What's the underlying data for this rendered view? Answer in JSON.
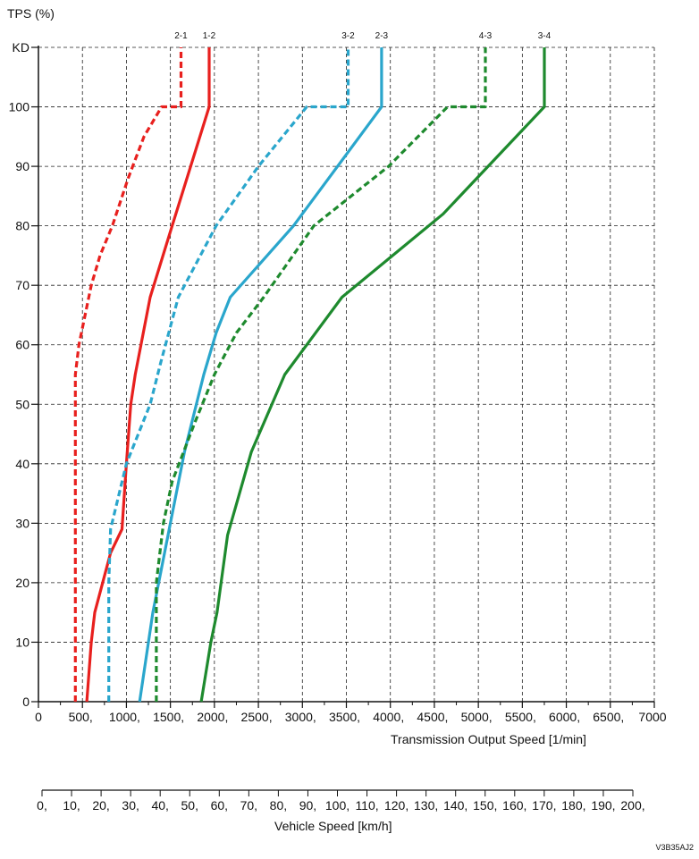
{
  "chart_data": {
    "type": "line",
    "y_axis": {
      "label": "TPS (%)",
      "range": [
        0,
        110
      ],
      "ticks": [
        0,
        10,
        20,
        30,
        40,
        50,
        60,
        70,
        80,
        90,
        100
      ],
      "tick_labels": [
        "0",
        "10",
        "20",
        "30",
        "40",
        "50",
        "60",
        "70",
        "80",
        "90",
        "100"
      ],
      "top_tick_value": 110,
      "top_tick_label": "KD"
    },
    "x_axis": {
      "label": "Transmission Output Speed [1/min]",
      "range": [
        0,
        7000
      ],
      "ticks": [
        0,
        500,
        1000,
        1500,
        2000,
        2500,
        3000,
        3500,
        4000,
        4500,
        5000,
        5500,
        6000,
        6500,
        7000
      ],
      "tick_labels": [
        "0",
        "500,",
        "1000,",
        "1500,",
        "2000,",
        "2500,",
        "3000,",
        "3500,",
        "4000,",
        "4500,",
        "5000,",
        "5500,",
        "6000,",
        "6500,",
        "7000"
      ]
    },
    "secondary_x_axis": {
      "label": "Vehicle Speed [km/h]",
      "range": [
        0,
        200
      ],
      "ticks": [
        0,
        10,
        20,
        30,
        40,
        50,
        60,
        70,
        80,
        90,
        100,
        110,
        120,
        130,
        140,
        150,
        160,
        170,
        180,
        190,
        200
      ],
      "tick_labels": [
        "0,",
        "10,",
        "20,",
        "30,",
        "40,",
        "50,",
        "60,",
        "70,",
        "80,",
        "90,",
        "100,",
        "110,",
        "120,",
        "130,",
        "140,",
        "150,",
        "160,",
        "170,",
        "180,",
        "190,",
        "200,"
      ]
    },
    "grid": true,
    "series": [
      {
        "name": "2-1",
        "color": "#e8201e",
        "style": "dashed",
        "points": [
          [
            420,
            0
          ],
          [
            420,
            55
          ],
          [
            460,
            60
          ],
          [
            530,
            65
          ],
          [
            600,
            70
          ],
          [
            700,
            75
          ],
          [
            840,
            80
          ],
          [
            1020,
            88
          ],
          [
            1200,
            95
          ],
          [
            1400,
            100
          ],
          [
            1620,
            100
          ],
          [
            1620,
            110
          ]
        ]
      },
      {
        "name": "1-2",
        "color": "#e8201e",
        "style": "solid",
        "points": [
          [
            550,
            0
          ],
          [
            600,
            10
          ],
          [
            640,
            15
          ],
          [
            820,
            25
          ],
          [
            950,
            29
          ],
          [
            1000,
            40
          ],
          [
            1050,
            50
          ],
          [
            1100,
            55
          ],
          [
            1270,
            68
          ],
          [
            1520,
            80
          ],
          [
            1940,
            100
          ],
          [
            1940,
            110
          ]
        ]
      },
      {
        "name": "3-2",
        "color": "#2aa6cc",
        "style": "dashed",
        "points": [
          [
            800,
            0
          ],
          [
            800,
            20
          ],
          [
            820,
            29
          ],
          [
            1000,
            40
          ],
          [
            1270,
            50
          ],
          [
            1390,
            57
          ],
          [
            1590,
            68
          ],
          [
            2020,
            80
          ],
          [
            2500,
            90
          ],
          [
            3050,
            100
          ],
          [
            3520,
            100
          ],
          [
            3520,
            110
          ]
        ]
      },
      {
        "name": "2-3",
        "color": "#2aa6cc",
        "style": "solid",
        "points": [
          [
            1150,
            0
          ],
          [
            1300,
            15
          ],
          [
            1500,
            30
          ],
          [
            1660,
            42
          ],
          [
            1880,
            55
          ],
          [
            2020,
            62
          ],
          [
            2180,
            68
          ],
          [
            2900,
            80
          ],
          [
            3900,
            100
          ],
          [
            3900,
            110
          ]
        ]
      },
      {
        "name": "4-3",
        "color": "#1e8a2e",
        "style": "dashed",
        "points": [
          [
            1340,
            0
          ],
          [
            1340,
            20
          ],
          [
            1420,
            30
          ],
          [
            1520,
            37
          ],
          [
            1780,
            47
          ],
          [
            2000,
            55
          ],
          [
            2250,
            62
          ],
          [
            2560,
            68
          ],
          [
            3130,
            80
          ],
          [
            3980,
            90
          ],
          [
            4650,
            100
          ],
          [
            5080,
            100
          ],
          [
            5080,
            110
          ]
        ]
      },
      {
        "name": "3-4",
        "color": "#1e8a2e",
        "style": "solid",
        "points": [
          [
            1850,
            0
          ],
          [
            1960,
            10
          ],
          [
            2030,
            15
          ],
          [
            2150,
            28
          ],
          [
            2420,
            42
          ],
          [
            2800,
            55
          ],
          [
            3450,
            68
          ],
          [
            4600,
            82
          ],
          [
            5750,
            100
          ],
          [
            5750,
            110
          ]
        ]
      }
    ],
    "code": "V3B35AJ2"
  }
}
